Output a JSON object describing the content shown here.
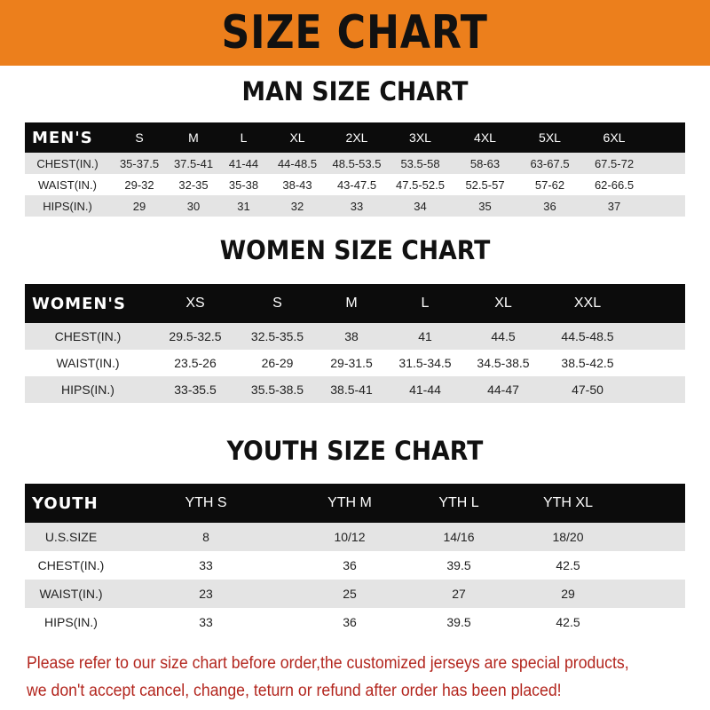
{
  "banner": {
    "title": "SIZE CHART",
    "color": "#ec7f1c"
  },
  "men": {
    "title": "MAN SIZE CHART",
    "header": [
      "MEN'S",
      "S",
      "M",
      "L",
      "XL",
      "2XL",
      "3XL",
      "4XL",
      "5XL",
      "6XL"
    ],
    "rows": [
      [
        "CHEST(IN.)",
        "35-37.5",
        "37.5-41",
        "41-44",
        "44-48.5",
        "48.5-53.5",
        "53.5-58",
        "58-63",
        "63-67.5",
        "67.5-72"
      ],
      [
        "WAIST(IN.)",
        "29-32",
        "32-35",
        "35-38",
        "38-43",
        "43-47.5",
        "47.5-52.5",
        "52.5-57",
        "57-62",
        "62-66.5"
      ],
      [
        "HIPS(IN.)",
        "29",
        "30",
        "31",
        "32",
        "33",
        "34",
        "35",
        "36",
        "37"
      ]
    ]
  },
  "women": {
    "title": "WOMEN SIZE CHART",
    "header": [
      "WOMEN'S",
      "XS",
      "S",
      "M",
      "L",
      "XL",
      "XXL"
    ],
    "rows": [
      [
        "CHEST(IN.)",
        "29.5-32.5",
        "32.5-35.5",
        "38",
        "41",
        "44.5",
        "44.5-48.5"
      ],
      [
        "WAIST(IN.)",
        "23.5-26",
        "26-29",
        "29-31.5",
        "31.5-34.5",
        "34.5-38.5",
        "38.5-42.5"
      ],
      [
        "HIPS(IN.)",
        "33-35.5",
        "35.5-38.5",
        "38.5-41",
        "41-44",
        "44-47",
        "47-50"
      ]
    ]
  },
  "youth": {
    "title": "YOUTH SIZE CHART",
    "header": [
      "YOUTH",
      "YTH S",
      "YTH M",
      "YTH L",
      "YTH XL"
    ],
    "rows": [
      [
        "U.S.SIZE",
        "8",
        "10/12",
        "14/16",
        "18/20"
      ],
      [
        "CHEST(IN.)",
        "33",
        "36",
        "39.5",
        "42.5"
      ],
      [
        "WAIST(IN.)",
        "23",
        "25",
        "27",
        "29"
      ],
      [
        "HIPS(IN.)",
        "33",
        "36",
        "39.5",
        "42.5"
      ]
    ]
  },
  "note": {
    "line1": "Please refer to our size chart before order,the customized jerseys are special products,",
    "line2": "we don't accept cancel, change, teturn or refund after order has been placed!"
  }
}
